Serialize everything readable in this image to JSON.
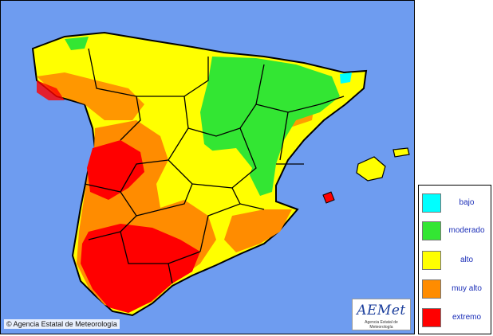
{
  "map": {
    "credit": "© Agencia Estatal de Meteorología",
    "logo_text": "AEMet",
    "logo_subtext": "Agencia Estatal de Meteorología",
    "sea_color": "#6e9cf0"
  },
  "legend": {
    "items": [
      {
        "label": "bajo",
        "color": "#00ffff"
      },
      {
        "label": "moderado",
        "color": "#33e633"
      },
      {
        "label": "alto",
        "color": "#ffff00"
      },
      {
        "label": "muy alto",
        "color": "#ff8c00"
      },
      {
        "label": "extremo",
        "color": "#ff0000"
      }
    ]
  }
}
